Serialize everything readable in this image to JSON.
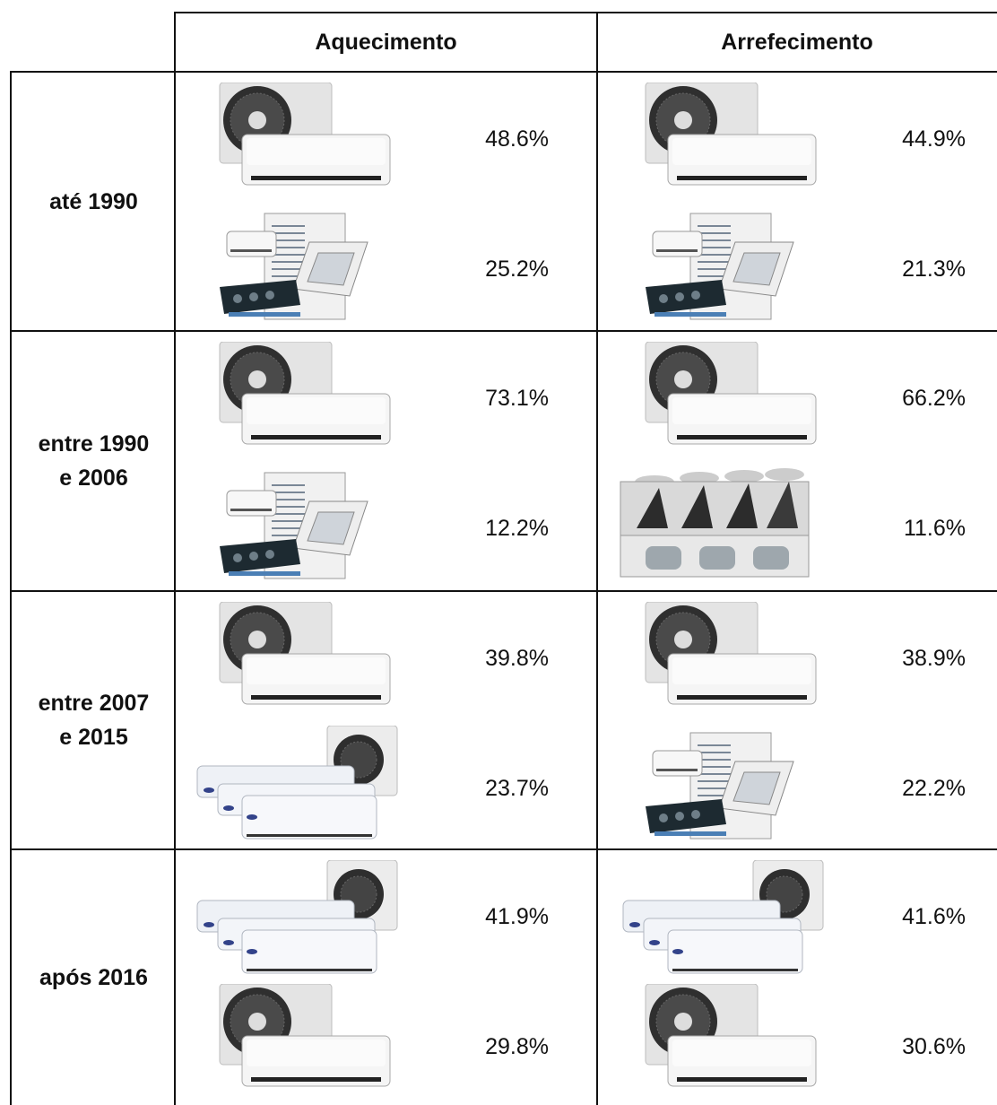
{
  "header": {
    "columns": [
      "Aquecimento",
      "Arrefecimento"
    ]
  },
  "rows": [
    {
      "label": "até 1990",
      "cells": [
        [
          "48.6%",
          "25.2%"
        ],
        [
          "44.9%",
          "21.3%"
        ]
      ]
    },
    {
      "label": "entre 1990 e 2006",
      "cells": [
        [
          "73.1%",
          "12.2%"
        ],
        [
          "66.2%",
          "11.6%"
        ]
      ]
    },
    {
      "label": "entre 2007 e 2015",
      "cells": [
        [
          "39.8%",
          "23.7%"
        ],
        [
          "38.9%",
          "22.2%"
        ]
      ]
    },
    {
      "label": "após 2016",
      "cells": [
        [
          "41.9%",
          "29.8%"
        ],
        [
          "41.6%",
          "30.6%"
        ]
      ]
    }
  ]
}
